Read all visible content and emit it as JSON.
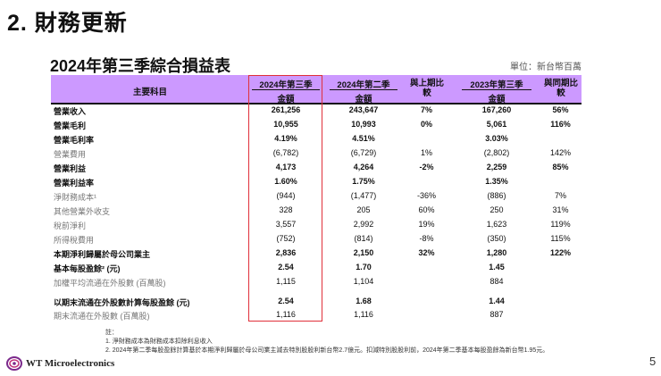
{
  "title": "2. 財務更新",
  "subtitle": "2024年第三季綜合損益表",
  "unit": "單位：新台幣百萬元",
  "header": {
    "item": "主要科目",
    "col1": "2024年第三季",
    "col2": "2024年第二季",
    "col3": "與上期比較",
    "col4": "2023年第三季",
    "col5": "與同期比較",
    "amount": "金額"
  },
  "rows": [
    {
      "label": "營業收入",
      "bold": true,
      "v": [
        "261,256",
        "243,647",
        "7%",
        "167,260",
        "56%"
      ]
    },
    {
      "label": "營業毛利",
      "bold": true,
      "v": [
        "10,955",
        "10,993",
        "0%",
        "5,061",
        "116%"
      ]
    },
    {
      "label": "營業毛利率",
      "bold": true,
      "v": [
        "4.19%",
        "4.51%",
        "",
        "3.03%",
        ""
      ]
    },
    {
      "label": "營業費用",
      "bold": false,
      "v": [
        "(6,782)",
        "(6,729)",
        "1%",
        "(2,802)",
        "142%"
      ]
    },
    {
      "label": "營業利益",
      "bold": true,
      "v": [
        "4,173",
        "4,264",
        "-2%",
        "2,259",
        "85%"
      ]
    },
    {
      "label": "營業利益率",
      "bold": true,
      "v": [
        "1.60%",
        "1.75%",
        "",
        "1.35%",
        ""
      ]
    },
    {
      "label": "淨財務成本¹",
      "bold": false,
      "v": [
        "(944)",
        "(1,477)",
        "-36%",
        "(886)",
        "7%"
      ]
    },
    {
      "label": "其他營業外收支",
      "bold": false,
      "v": [
        "328",
        "205",
        "60%",
        "250",
        "31%"
      ]
    },
    {
      "label": "稅前淨利",
      "bold": false,
      "v": [
        "3,557",
        "2,992",
        "19%",
        "1,623",
        "119%"
      ]
    },
    {
      "label": "所得稅費用",
      "bold": false,
      "v": [
        "(752)",
        "(814)",
        "-8%",
        "(350)",
        "115%"
      ]
    },
    {
      "label": "本期淨利歸屬於母公司業主",
      "bold": true,
      "v": [
        "2,836",
        "2,150",
        "32%",
        "1,280",
        "122%"
      ]
    },
    {
      "label": "基本每股盈餘² (元)",
      "bold": true,
      "v": [
        "2.54",
        "1.70",
        "",
        "1.45",
        ""
      ]
    },
    {
      "label": "加權平均流通在外股數 (百萬股)",
      "bold": false,
      "v": [
        "1,115",
        "1,104",
        "",
        "884",
        ""
      ]
    },
    {
      "label": "以期末流通在外股數計算每股盈餘 (元)",
      "bold": true,
      "v": [
        "2.54",
        "1.68",
        "",
        "1.44",
        ""
      ]
    },
    {
      "label": "期末流通在外股數 (百萬股)",
      "bold": false,
      "v": [
        "1,116",
        "1,116",
        "",
        "887",
        ""
      ]
    }
  ],
  "notes": {
    "heading": "註：",
    "items": [
      "1.   淨財務成本為財務成本扣除利息收入",
      "2.   2024年第二季每股盈餘計算基於本期淨利歸屬於母公司業主減去特別股股利新台幣2.7億元。扣減特別股股利前，2024年第二季基本每股盈餘為新台幣1.95元。"
    ]
  },
  "logo": {
    "text": "WT Microelectronics",
    "color": "#7b2a8c"
  },
  "page_number": "5",
  "colors": {
    "header_bg": "#cc99ff",
    "highlight_box": "#e0303a"
  }
}
